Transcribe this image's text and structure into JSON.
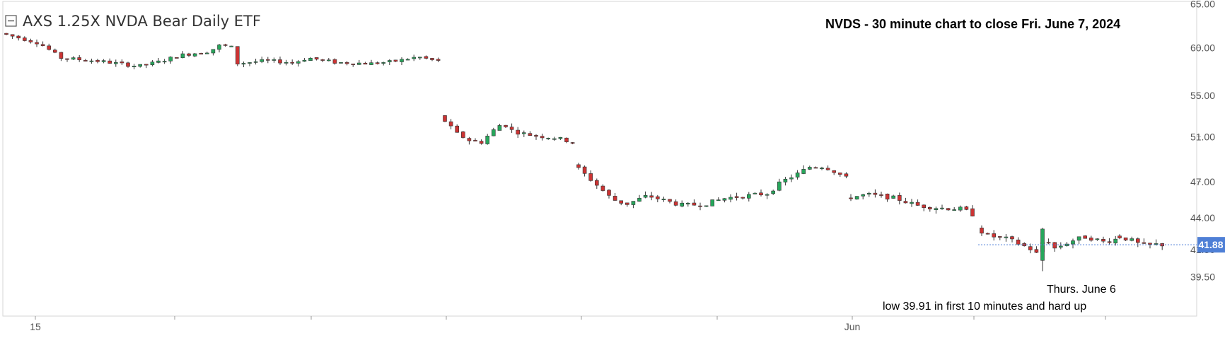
{
  "chart_data": {
    "type": "candlestick",
    "title": "AXS 1.25X NVDA Bear Daily ETF",
    "annotation_title": "NVDS - 30 minute chart to close Fri. June 7, 2024",
    "annotation_low_line1": "Thurs. June 6",
    "annotation_low_line2": "low 39.91 in first 10 minutes and hard up",
    "last_price_label": "41.88",
    "last_price": 41.88,
    "y_ticks": [
      "65.00",
      "60.00",
      "55.00",
      "51.00",
      "47.00",
      "44.00",
      "41.50",
      "39.50"
    ],
    "y_tick_values": [
      65.0,
      60.0,
      55.0,
      51.0,
      47.0,
      44.0,
      41.5,
      39.5
    ],
    "x_labels": [
      "15",
      "Jun"
    ],
    "ylim": [
      38.5,
      65.0
    ],
    "scale": "log",
    "colors": {
      "up": "#26a65b",
      "down": "#cc3333",
      "last": "#4e7fd6"
    },
    "sessions": [
      {
        "start": 61.6,
        "end": 59.4,
        "bars": 31
      },
      {
        "start": 58.6,
        "end": 58.5,
        "bars": 31
      },
      {
        "start": 53.1,
        "end": 50.6,
        "bars": 21
      },
      {
        "start": 48.6,
        "end": 47.1,
        "bars": 41
      },
      {
        "start": 45.7,
        "end": 44.9,
        "bars": 19
      },
      {
        "start": 43.3,
        "end": 41.9,
        "bars": 29
      }
    ],
    "events": [
      {
        "label": "Thurs. June 6 low",
        "value": 39.91
      }
    ]
  }
}
